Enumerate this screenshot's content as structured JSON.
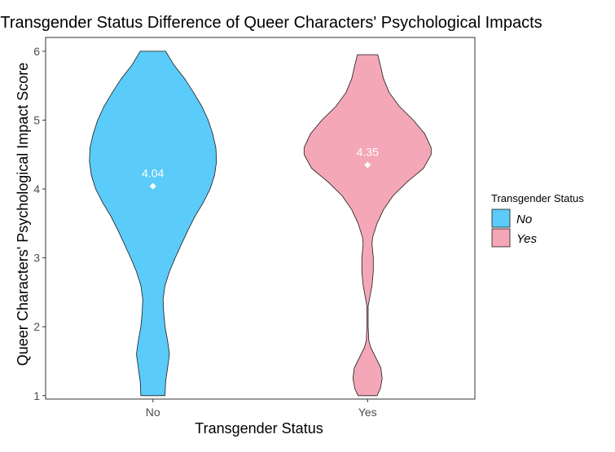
{
  "chart_data": {
    "type": "violin",
    "title": "Transgender Status Difference of Queer Characters' Psychological Impacts",
    "xlabel": "Transgender Status",
    "ylabel": "Queer Characters' Psychological Impact Score",
    "ylim": [
      0.95,
      6.2
    ],
    "yticks": [
      1,
      2,
      3,
      4,
      5,
      6
    ],
    "categories": [
      "No",
      "Yes"
    ],
    "legend": {
      "title": "Transgender Status",
      "position": "right",
      "entries": [
        "No",
        "Yes"
      ]
    },
    "grid": false,
    "series": [
      {
        "name": "No",
        "color": "#5BCBF9",
        "mean": 4.04,
        "mean_label": "4.04",
        "density": [
          [
            1.0,
            0.19
          ],
          [
            1.2,
            0.2
          ],
          [
            1.4,
            0.23
          ],
          [
            1.6,
            0.26
          ],
          [
            1.8,
            0.23
          ],
          [
            2.0,
            0.19
          ],
          [
            2.2,
            0.17
          ],
          [
            2.4,
            0.16
          ],
          [
            2.6,
            0.19
          ],
          [
            2.8,
            0.26
          ],
          [
            3.0,
            0.35
          ],
          [
            3.2,
            0.45
          ],
          [
            3.4,
            0.55
          ],
          [
            3.6,
            0.66
          ],
          [
            3.8,
            0.79
          ],
          [
            4.0,
            0.9
          ],
          [
            4.2,
            0.97
          ],
          [
            4.4,
            1.0
          ],
          [
            4.6,
            0.99
          ],
          [
            4.8,
            0.94
          ],
          [
            5.0,
            0.87
          ],
          [
            5.2,
            0.77
          ],
          [
            5.4,
            0.64
          ],
          [
            5.6,
            0.5
          ],
          [
            5.8,
            0.33
          ],
          [
            6.0,
            0.2
          ]
        ]
      },
      {
        "name": "Yes",
        "color": "#F4A7B7",
        "mean": 4.35,
        "mean_label": "4.35",
        "density": [
          [
            1.0,
            0.15
          ],
          [
            1.1,
            0.2
          ],
          [
            1.25,
            0.23
          ],
          [
            1.4,
            0.21
          ],
          [
            1.55,
            0.13
          ],
          [
            1.7,
            0.05
          ],
          [
            1.8,
            0.02
          ],
          [
            2.0,
            0.01
          ],
          [
            2.3,
            0.01
          ],
          [
            2.4,
            0.03
          ],
          [
            2.6,
            0.07
          ],
          [
            2.8,
            0.09
          ],
          [
            3.0,
            0.09
          ],
          [
            3.2,
            0.07
          ],
          [
            3.3,
            0.08
          ],
          [
            3.5,
            0.15
          ],
          [
            3.7,
            0.25
          ],
          [
            3.9,
            0.4
          ],
          [
            4.1,
            0.62
          ],
          [
            4.3,
            0.88
          ],
          [
            4.5,
            1.0
          ],
          [
            4.6,
            1.0
          ],
          [
            4.8,
            0.9
          ],
          [
            5.0,
            0.72
          ],
          [
            5.2,
            0.5
          ],
          [
            5.4,
            0.34
          ],
          [
            5.6,
            0.25
          ],
          [
            5.8,
            0.2
          ],
          [
            5.95,
            0.16
          ]
        ]
      }
    ]
  }
}
